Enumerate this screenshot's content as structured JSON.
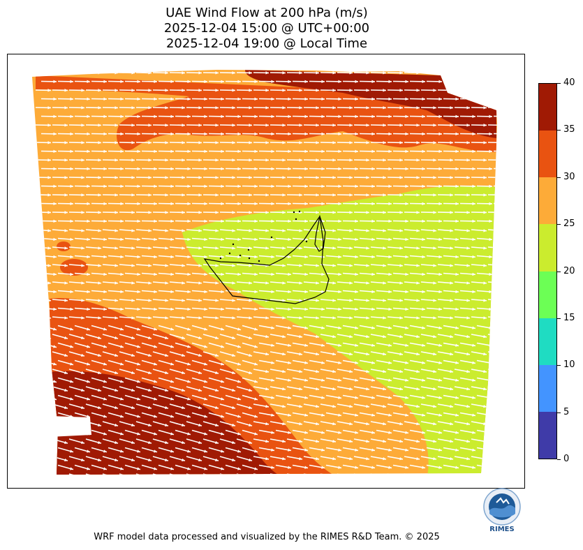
{
  "title": {
    "line1": "UAE Wind Flow at 200 hPa (m/s)",
    "line2": "2025-12-04 15:00 @ UTC+00:00",
    "line3": "2025-12-04 19:00 @ Local Time"
  },
  "colorbar": {
    "ticks": [
      "0",
      "5",
      "10",
      "15",
      "20",
      "25",
      "30",
      "35",
      "40"
    ],
    "levels": [
      {
        "min": 0,
        "max": 5,
        "color": "#3f3ba8"
      },
      {
        "min": 5,
        "max": 10,
        "color": "#4394ff"
      },
      {
        "min": 10,
        "max": 15,
        "color": "#1fdcc2"
      },
      {
        "min": 15,
        "max": 20,
        "color": "#6cff55"
      },
      {
        "min": 20,
        "max": 25,
        "color": "#cbec2e"
      },
      {
        "min": 25,
        "max": 30,
        "color": "#fdab38"
      },
      {
        "min": 30,
        "max": 35,
        "color": "#e95311"
      },
      {
        "min": 35,
        "max": 40,
        "color": "#a01a04"
      }
    ]
  },
  "map": {
    "arrow_color": "#ffffff",
    "boundary_color": "#000000",
    "wind_direction": "westerly to west-northwesterly"
  },
  "logo": {
    "text": "RIMES"
  },
  "credit": "WRF model data processed and visualized by the RIMES R&D Team. © 2025"
}
